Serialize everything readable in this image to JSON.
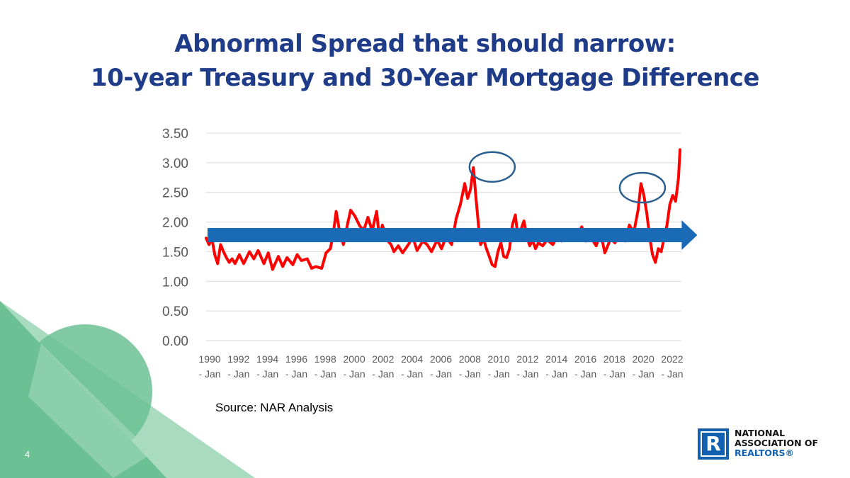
{
  "slide": {
    "title_line1": "Abnormal Spread that should narrow:",
    "title_line2": "10-year Treasury and 30-Year Mortgage Difference",
    "source": "Source: NAR Analysis",
    "slide_number": "4",
    "logo": {
      "mark": "R",
      "line1": "NATIONAL",
      "line2": "ASSOCIATION OF",
      "line3": "REALTORS®"
    }
  },
  "colors": {
    "title": "#1f3c88",
    "line": "#ff0000",
    "arrow": "#1a6ab5",
    "circle": "#2b5f8e",
    "green_dark": "#6cc194",
    "green_light": "#a8dbc0",
    "logo_blue": "#1161b0"
  },
  "chart_data": {
    "type": "line",
    "title": "",
    "xlabel": "",
    "ylabel": "",
    "ylim": [
      0,
      3.5
    ],
    "yticks": [
      "0.00",
      "0.50",
      "1.00",
      "1.50",
      "2.00",
      "2.50",
      "3.00",
      "3.50"
    ],
    "xticks": [
      {
        "top": "1990",
        "bottom": "- Jan"
      },
      {
        "top": "1992",
        "bottom": "- Jan"
      },
      {
        "top": "1994",
        "bottom": "- Jan"
      },
      {
        "top": "1996",
        "bottom": "- Jan"
      },
      {
        "top": "1998",
        "bottom": "- Jan"
      },
      {
        "top": "2000",
        "bottom": "- Jan"
      },
      {
        "top": "2002",
        "bottom": "- Jan"
      },
      {
        "top": "2004",
        "bottom": "- Jan"
      },
      {
        "top": "2006",
        "bottom": "- Jan"
      },
      {
        "top": "2008",
        "bottom": "- Jan"
      },
      {
        "top": "2010",
        "bottom": "- Jan"
      },
      {
        "top": "2012",
        "bottom": "- Jan"
      },
      {
        "top": "2014",
        "bottom": "- Jan"
      },
      {
        "top": "2016",
        "bottom": "- Jan"
      },
      {
        "top": "2018",
        "bottom": "- Jan"
      },
      {
        "top": "2020",
        "bottom": "- Jan"
      },
      {
        "top": "2022",
        "bottom": "- Jan"
      }
    ],
    "xlim": [
      1990.0,
      2022.9
    ],
    "grid": true,
    "series": [
      {
        "name": "",
        "x": [
          1990.0,
          1990.2,
          1990.4,
          1990.6,
          1990.8,
          1991.0,
          1991.2,
          1991.4,
          1991.6,
          1991.8,
          1992.0,
          1992.3,
          1992.6,
          1993.0,
          1993.3,
          1993.6,
          1994.0,
          1994.3,
          1994.6,
          1995.0,
          1995.3,
          1995.6,
          1996.0,
          1996.3,
          1996.6,
          1997.0,
          1997.3,
          1997.6,
          1998.0,
          1998.3,
          1998.6,
          1998.8,
          1999.0,
          1999.2,
          1999.5,
          1999.8,
          2000.0,
          2000.3,
          2000.6,
          2000.9,
          2001.2,
          2001.5,
          2001.8,
          2002.0,
          2002.2,
          2002.5,
          2002.8,
          2003.0,
          2003.3,
          2003.6,
          2004.0,
          2004.3,
          2004.6,
          2005.0,
          2005.3,
          2005.6,
          2006.0,
          2006.3,
          2006.6,
          2007.0,
          2007.3,
          2007.6,
          2007.9,
          2008.1,
          2008.3,
          2008.5,
          2008.7,
          2008.9,
          2009.0,
          2009.2,
          2009.4,
          2009.6,
          2009.8,
          2010.0,
          2010.2,
          2010.4,
          2010.6,
          2010.8,
          2011.0,
          2011.2,
          2011.4,
          2011.6,
          2011.8,
          2012.0,
          2012.2,
          2012.4,
          2012.6,
          2012.8,
          2013.0,
          2013.3,
          2013.6,
          2014.0,
          2014.3,
          2014.6,
          2015.0,
          2015.3,
          2015.6,
          2016.0,
          2016.3,
          2016.6,
          2017.0,
          2017.3,
          2017.6,
          2018.0,
          2018.3,
          2018.6,
          2019.0,
          2019.3,
          2019.6,
          2019.9,
          2020.1,
          2020.3,
          2020.5,
          2020.7,
          2020.9,
          2021.1,
          2021.3,
          2021.5,
          2021.7,
          2021.9,
          2022.1,
          2022.3,
          2022.5,
          2022.6,
          2022.7,
          2022.8
        ],
        "values": [
          1.73,
          1.62,
          1.72,
          1.45,
          1.3,
          1.62,
          1.5,
          1.4,
          1.32,
          1.38,
          1.3,
          1.45,
          1.3,
          1.5,
          1.38,
          1.52,
          1.3,
          1.48,
          1.2,
          1.42,
          1.25,
          1.4,
          1.28,
          1.45,
          1.35,
          1.38,
          1.22,
          1.25,
          1.22,
          1.48,
          1.55,
          1.8,
          2.18,
          1.9,
          1.62,
          1.98,
          2.2,
          2.1,
          1.95,
          1.85,
          2.08,
          1.85,
          2.18,
          1.72,
          1.95,
          1.7,
          1.62,
          1.5,
          1.6,
          1.48,
          1.62,
          1.75,
          1.52,
          1.68,
          1.62,
          1.5,
          1.7,
          1.55,
          1.75,
          1.62,
          2.05,
          2.3,
          2.65,
          2.4,
          2.55,
          2.92,
          2.35,
          1.82,
          1.62,
          1.72,
          1.55,
          1.42,
          1.28,
          1.25,
          1.5,
          1.65,
          1.42,
          1.4,
          1.55,
          1.95,
          2.12,
          1.72,
          1.88,
          2.02,
          1.75,
          1.6,
          1.7,
          1.55,
          1.65,
          1.6,
          1.7,
          1.62,
          1.75,
          1.68,
          1.78,
          1.82,
          1.75,
          1.92,
          1.68,
          1.75,
          1.6,
          1.82,
          1.48,
          1.72,
          1.65,
          1.8,
          1.68,
          1.95,
          1.82,
          2.2,
          2.65,
          2.45,
          2.15,
          1.75,
          1.45,
          1.32,
          1.55,
          1.5,
          1.72,
          1.95,
          2.3,
          2.45,
          2.35,
          2.55,
          2.75,
          3.22
        ]
      }
    ],
    "annotations": [
      {
        "type": "ellipse",
        "x": 2009.8,
        "y": 2.93
      },
      {
        "type": "ellipse",
        "x": 2020.2,
        "y": 2.58
      },
      {
        "type": "arrow",
        "x_start": 1990.1,
        "x_end": 2024.0,
        "y": 1.78
      }
    ]
  }
}
